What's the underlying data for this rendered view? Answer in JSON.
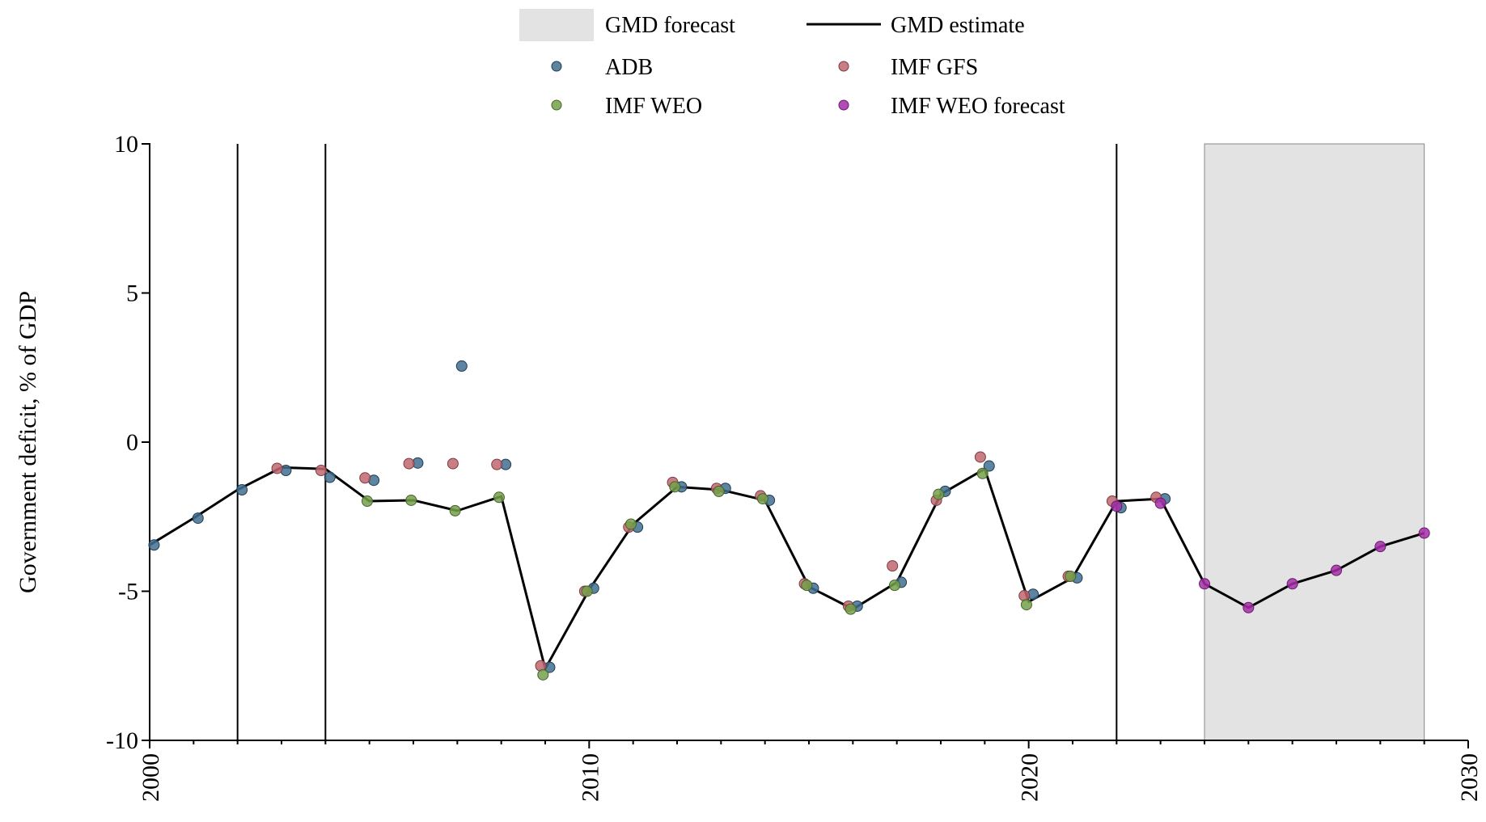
{
  "chart_data": {
    "type": "line",
    "ylabel": "Government deficit, % of GDP",
    "xlim": [
      2000,
      2030
    ],
    "ylim": [
      -10,
      10
    ],
    "x_ticks": [
      2000,
      2010,
      2020,
      2030
    ],
    "y_ticks": [
      10,
      5,
      0,
      -5,
      -10
    ],
    "y_tick_labels": [
      "10",
      "5",
      "0",
      "-5",
      "-10"
    ],
    "legend_position": "top-center",
    "forecast_region": [
      2024,
      2029
    ],
    "vertical_lines": [
      2002,
      2004,
      2022
    ],
    "legend": {
      "forecast": "GMD forecast",
      "estimate": "GMD estimate",
      "adb": "ADB",
      "imf_gfs": "IMF GFS",
      "imf_weo": "IMF WEO",
      "imf_weo_forecast": "IMF WEO forecast"
    },
    "colors": {
      "estimate": "#000000",
      "forecast_shade": "#e3e3e3",
      "adb": "#416e8f",
      "imf_gfs": "#c0666e",
      "imf_weo": "#74a04a",
      "imf_weo_forecast": "#a42ea8"
    },
    "series": [
      {
        "name": "GMD estimate",
        "x": [
          2000,
          2001,
          2002,
          2003,
          2004,
          2005,
          2006,
          2007,
          2008,
          2009,
          2010,
          2011,
          2012,
          2013,
          2014,
          2015,
          2016,
          2017,
          2018,
          2019,
          2020,
          2021,
          2022,
          2023,
          2024,
          2025,
          2026,
          2027,
          2028,
          2029
        ],
        "values": [
          -3.45,
          -2.55,
          -1.6,
          -0.85,
          -0.9,
          -1.98,
          -1.95,
          -2.3,
          -1.82,
          -7.6,
          -4.95,
          -2.75,
          -1.5,
          -1.6,
          -1.95,
          -4.85,
          -5.6,
          -4.7,
          -1.75,
          -0.9,
          -5.35,
          -4.55,
          -1.98,
          -1.9,
          -4.75,
          -5.55,
          -4.75,
          -4.3,
          -3.5,
          -3.05
        ]
      },
      {
        "name": "ADB",
        "x": [
          2000,
          2001,
          2002,
          2003,
          2004,
          2005,
          2006,
          2007,
          2008,
          2009,
          2010,
          2011,
          2012,
          2013,
          2014,
          2015,
          2016,
          2017,
          2018,
          2019,
          2020,
          2021,
          2022,
          2023
        ],
        "values": [
          -3.45,
          -2.55,
          -1.6,
          -0.95,
          -1.18,
          -1.28,
          -0.7,
          2.55,
          -0.75,
          -7.55,
          -4.9,
          -2.85,
          -1.5,
          -1.55,
          -1.95,
          -4.9,
          -5.5,
          -4.7,
          -1.65,
          -0.8,
          -5.1,
          -4.55,
          -2.2,
          -1.9
        ]
      },
      {
        "name": "IMF GFS",
        "x": [
          2003,
          2004,
          2005,
          2006,
          2007,
          2008,
          2009,
          2010,
          2011,
          2012,
          2013,
          2014,
          2015,
          2016,
          2017,
          2018,
          2019,
          2020,
          2021,
          2022,
          2023
        ],
        "values": [
          -0.88,
          -0.95,
          -1.2,
          -0.72,
          -0.72,
          -0.75,
          -7.5,
          -5.0,
          -2.85,
          -1.35,
          -1.55,
          -1.8,
          -4.75,
          -5.5,
          -4.15,
          -1.95,
          -0.5,
          -5.15,
          -4.5,
          -1.98,
          -1.85
        ]
      },
      {
        "name": "IMF WEO",
        "x": [
          2005,
          2006,
          2007,
          2008,
          2009,
          2010,
          2011,
          2012,
          2013,
          2014,
          2015,
          2016,
          2017,
          2018,
          2019,
          2020,
          2021
        ],
        "values": [
          -1.98,
          -1.95,
          -2.3,
          -1.85,
          -7.8,
          -5.0,
          -2.75,
          -1.5,
          -1.65,
          -1.9,
          -4.8,
          -5.6,
          -4.8,
          -1.75,
          -1.05,
          -5.45,
          -4.5
        ]
      },
      {
        "name": "IMF WEO forecast",
        "x": [
          2022,
          2023,
          2024,
          2025,
          2026,
          2027,
          2028,
          2029
        ],
        "values": [
          -2.15,
          -2.05,
          -4.75,
          -5.55,
          -4.75,
          -4.3,
          -3.5,
          -3.05
        ]
      }
    ]
  }
}
